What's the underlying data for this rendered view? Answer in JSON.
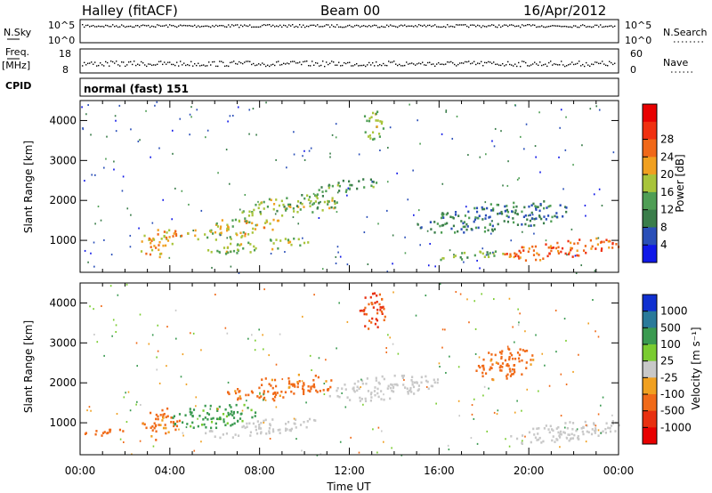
{
  "header": {
    "station": "Halley (fitACF)",
    "beam": "Beam 00",
    "date": "16/Apr/2012"
  },
  "strips": {
    "nsky_label": "N.Sky",
    "nsky_ticks": [
      "10^5",
      "10^0"
    ],
    "nsearch_label": "N.Search",
    "nsearch_ticks": [
      "10^5",
      "10^0"
    ],
    "freq_label": "Freq.",
    "freq_unit": "[MHz]",
    "freq_ticks": [
      "18",
      "8"
    ],
    "nave_label": "Nave",
    "nave_ticks": [
      "60",
      "0"
    ],
    "cpid_label": "CPID",
    "cpid_text": "normal (fast) 151"
  },
  "chart_data": [
    {
      "type": "heatmap",
      "name": "power",
      "ylabel": "Slant Range [km]",
      "xlabel": "",
      "x_ticks": [
        "00:00",
        "04:00",
        "08:00",
        "12:00",
        "16:00",
        "20:00",
        "00:00"
      ],
      "y_ticks": [
        1000,
        2000,
        3000,
        4000
      ],
      "ylim": [
        200,
        4500
      ],
      "colorbar": {
        "label": "Power [dB]",
        "ticks": [
          "4",
          "8",
          "12",
          "16",
          "20",
          "24",
          "28"
        ],
        "colors": [
          "#1018e8",
          "#2a4fb8",
          "#3a7d4a",
          "#4f9e55",
          "#a8c43a",
          "#f0a020",
          "#f06818",
          "#f03010",
          "#e80000"
        ]
      },
      "blobs": [
        {
          "t": 3.5,
          "r": 950,
          "dt": 0.9,
          "dr": 350,
          "v": 20
        },
        {
          "t": 6.5,
          "r": 1300,
          "dt": 2.5,
          "dr": 250,
          "v": 18
        },
        {
          "t": 9.5,
          "r": 1900,
          "dt": 2.5,
          "dr": 250,
          "v": 14
        },
        {
          "t": 8.0,
          "r": 900,
          "dt": 2.5,
          "dr": 150,
          "v": 15
        },
        {
          "t": 12.0,
          "r": 2400,
          "dt": 1.5,
          "dr": 150,
          "v": 10
        },
        {
          "t": 13.0,
          "r": 3900,
          "dt": 0.5,
          "dr": 400,
          "v": 14
        },
        {
          "t": 18.5,
          "r": 1600,
          "dt": 3.5,
          "dr": 350,
          "v": 8
        },
        {
          "t": 21.5,
          "r": 800,
          "dt": 2.8,
          "dr": 220,
          "v": 24
        },
        {
          "t": 17.5,
          "r": 650,
          "dt": 1.5,
          "dr": 100,
          "v": 14
        }
      ]
    },
    {
      "type": "heatmap",
      "name": "velocity",
      "ylabel": "Slant Range [km]",
      "xlabel": "Time UT",
      "x_ticks": [
        "00:00",
        "04:00",
        "08:00",
        "12:00",
        "16:00",
        "20:00",
        "00:00"
      ],
      "y_ticks": [
        1000,
        2000,
        3000,
        4000
      ],
      "ylim": [
        200,
        4500
      ],
      "colorbar": {
        "label": "Velocity [m s⁻¹]",
        "ticks": [
          "1000",
          "500",
          "100",
          "25",
          "-25",
          "-100",
          "-500",
          "-1000"
        ],
        "colors": [
          "#1030d0",
          "#2a7a9a",
          "#3a9a50",
          "#7acc30",
          "#c8c8c8",
          "#f0a020",
          "#f06a18",
          "#e83010",
          "#e80000"
        ]
      },
      "blobs": [
        {
          "t": 3.5,
          "r": 1000,
          "dt": 0.9,
          "dr": 400,
          "v": -200
        },
        {
          "t": 6.0,
          "r": 1200,
          "dt": 2.0,
          "dr": 300,
          "v": 150
        },
        {
          "t": 9.0,
          "r": 1900,
          "dt": 2.5,
          "dr": 300,
          "v": -200
        },
        {
          "t": 8.0,
          "r": 900,
          "dt": 2.5,
          "dr": 200,
          "v": 10
        },
        {
          "t": 13.5,
          "r": 1900,
          "dt": 2.5,
          "dr": 300,
          "v": 5
        },
        {
          "t": 13.0,
          "r": 3800,
          "dt": 0.6,
          "dr": 500,
          "v": -600
        },
        {
          "t": 19.0,
          "r": 2500,
          "dt": 1.5,
          "dr": 400,
          "v": -200
        },
        {
          "t": 21.5,
          "r": 800,
          "dt": 2.8,
          "dr": 250,
          "v": 5
        },
        {
          "t": 1.0,
          "r": 800,
          "dt": 1.0,
          "dr": 100,
          "v": -300
        }
      ]
    }
  ]
}
